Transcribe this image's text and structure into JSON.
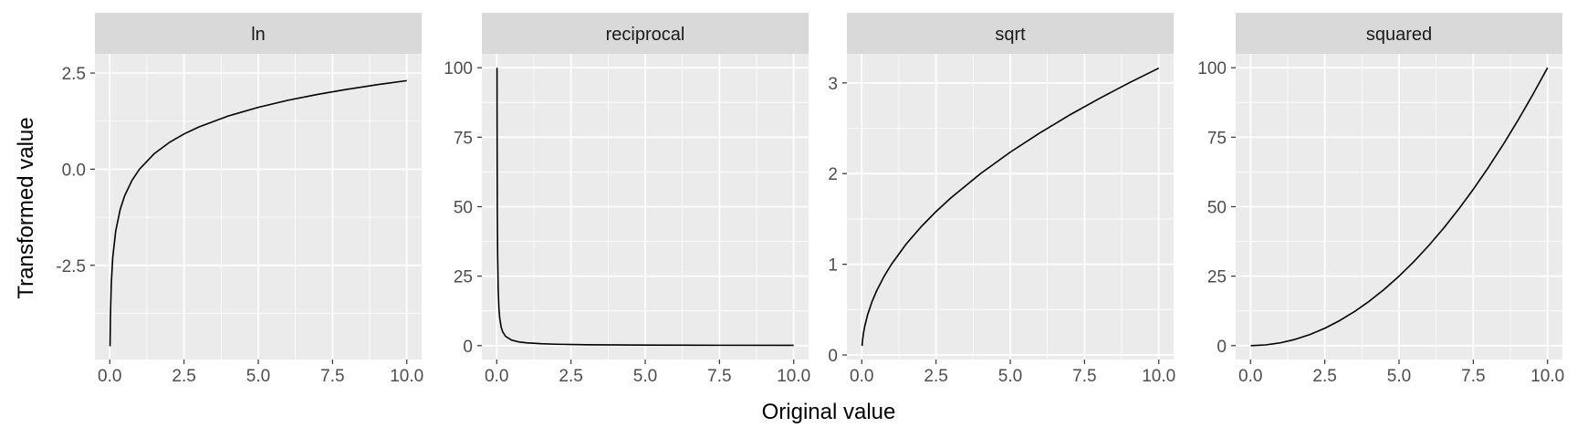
{
  "figure": {
    "xlabel": "Original value",
    "ylabel": "Transformed value"
  },
  "colors": {
    "panel_background": "#EBEBEB",
    "strip_background": "#D9D9D9",
    "grid": "#FFFFFF",
    "line": "#000000",
    "tick_text": "#4D4D4D"
  },
  "chart_data": [
    {
      "type": "line",
      "facet": "ln",
      "x": [
        0.01,
        0.02,
        0.05,
        0.1,
        0.2,
        0.35,
        0.5,
        0.75,
        1.0,
        1.5,
        2.0,
        2.5,
        3.0,
        4.0,
        5.0,
        6.0,
        7.0,
        8.0,
        9.0,
        10.0
      ],
      "y": [
        -4.605,
        -3.912,
        -2.996,
        -2.303,
        -1.609,
        -1.05,
        -0.693,
        -0.288,
        0.0,
        0.405,
        0.693,
        0.916,
        1.099,
        1.386,
        1.609,
        1.792,
        1.946,
        2.079,
        2.197,
        2.303
      ],
      "xlim": [
        -0.5,
        10.5
      ],
      "ylim": [
        -4.95,
        3.0
      ],
      "x_ticks": [
        0.0,
        2.5,
        5.0,
        7.5,
        10.0
      ],
      "x_tick_labels": [
        "0.0",
        "2.5",
        "5.0",
        "7.5",
        "10.0"
      ],
      "y_ticks": [
        -2.5,
        0.0,
        2.5
      ],
      "y_tick_labels": [
        "-2.5",
        "0.0",
        "2.5"
      ],
      "grid": true
    },
    {
      "type": "line",
      "facet": "reciprocal",
      "x": [
        0.01,
        0.012,
        0.015,
        0.02,
        0.03,
        0.05,
        0.075,
        0.1,
        0.15,
        0.2,
        0.3,
        0.5,
        0.75,
        1.0,
        1.5,
        2.0,
        3.0,
        5.0,
        7.5,
        10.0
      ],
      "y": [
        100.0,
        83.33,
        66.67,
        50.0,
        33.33,
        20.0,
        13.33,
        10.0,
        6.67,
        5.0,
        3.33,
        2.0,
        1.33,
        1.0,
        0.67,
        0.5,
        0.33,
        0.2,
        0.13,
        0.1
      ],
      "xlim": [
        -0.5,
        10.5
      ],
      "ylim": [
        -5.0,
        105.0
      ],
      "x_ticks": [
        0.0,
        2.5,
        5.0,
        7.5,
        10.0
      ],
      "x_tick_labels": [
        "0.0",
        "2.5",
        "5.0",
        "7.5",
        "10.0"
      ],
      "y_ticks": [
        0,
        25,
        50,
        75,
        100
      ],
      "y_tick_labels": [
        "0",
        "25",
        "50",
        "75",
        "100"
      ],
      "grid": true
    },
    {
      "type": "line",
      "facet": "sqrt",
      "x": [
        0.01,
        0.03,
        0.06,
        0.1,
        0.2,
        0.35,
        0.5,
        0.75,
        1.0,
        1.5,
        2.0,
        2.5,
        3.0,
        4.0,
        5.0,
        6.0,
        7.0,
        8.0,
        9.0,
        10.0
      ],
      "y": [
        0.1,
        0.173,
        0.245,
        0.316,
        0.447,
        0.592,
        0.707,
        0.866,
        1.0,
        1.225,
        1.414,
        1.581,
        1.732,
        2.0,
        2.236,
        2.449,
        2.646,
        2.828,
        3.0,
        3.162
      ],
      "xlim": [
        -0.5,
        10.5
      ],
      "ylim": [
        -0.05,
        3.32
      ],
      "x_ticks": [
        0.0,
        2.5,
        5.0,
        7.5,
        10.0
      ],
      "x_tick_labels": [
        "0.0",
        "2.5",
        "5.0",
        "7.5",
        "10.0"
      ],
      "y_ticks": [
        0,
        1,
        2,
        3
      ],
      "y_tick_labels": [
        "0",
        "1",
        "2",
        "3"
      ],
      "grid": true
    },
    {
      "type": "line",
      "facet": "squared",
      "x": [
        0.01,
        0.5,
        1.0,
        1.5,
        2.0,
        2.5,
        3.0,
        3.5,
        4.0,
        4.5,
        5.0,
        5.5,
        6.0,
        6.5,
        7.0,
        7.5,
        8.0,
        8.5,
        9.0,
        9.5,
        10.0
      ],
      "y": [
        0.0,
        0.25,
        1.0,
        2.25,
        4.0,
        6.25,
        9.0,
        12.25,
        16.0,
        20.25,
        25.0,
        30.25,
        36.0,
        42.25,
        49.0,
        56.25,
        64.0,
        72.25,
        81.0,
        90.25,
        100.0
      ],
      "xlim": [
        -0.5,
        10.5
      ],
      "ylim": [
        -5.0,
        105.0
      ],
      "x_ticks": [
        0.0,
        2.5,
        5.0,
        7.5,
        10.0
      ],
      "x_tick_labels": [
        "0.0",
        "2.5",
        "5.0",
        "7.5",
        "10.0"
      ],
      "y_ticks": [
        0,
        25,
        50,
        75,
        100
      ],
      "y_tick_labels": [
        "0",
        "25",
        "50",
        "75",
        "100"
      ],
      "grid": true
    }
  ]
}
